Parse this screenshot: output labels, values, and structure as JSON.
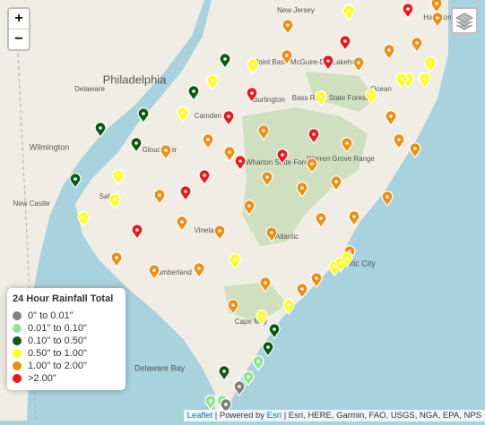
{
  "zoom": {
    "in": "+",
    "out": "−"
  },
  "legend": {
    "title": "24 Hour Rainfall Total",
    "items": [
      {
        "label": "0\" to 0.01\"",
        "color": "#7f7f7f"
      },
      {
        "label": "0.01\" to 0.10\"",
        "color": "#8fe68f"
      },
      {
        "label": "0.10\" to 0.50\"",
        "color": "#0b5a14"
      },
      {
        "label": "0.50\" to 1.00\"",
        "color": "#ffff1a"
      },
      {
        "label": "1.00\" to 2.00\"",
        "color": "#f28c0f"
      },
      {
        "label": ">2.00\"",
        "color": "#f2141a"
      }
    ]
  },
  "map_labels": [
    "Philadelphia",
    "Wilmington",
    "New Castle",
    "Camden",
    "Burlington",
    "Gloucester",
    "Salem",
    "Vineland",
    "Cumberland",
    "Atlantic",
    "Atlantic City",
    "Cape May",
    "Delaware Bay",
    "Wharton State Forest",
    "Warren Grove Range",
    "Joint Base McGuire-Dix Lakehurst",
    "Bass River State Forest",
    "Ocean",
    "Hamilton",
    "Delaware",
    "New Jersey"
  ],
  "attribution": {
    "leaflet": "Leaflet",
    "powered": "| Powered by",
    "esri": "Esri",
    "sources": "| Esri, HERE, Garmin, FAO, USGS, NGA, EPA, NPS"
  }
}
